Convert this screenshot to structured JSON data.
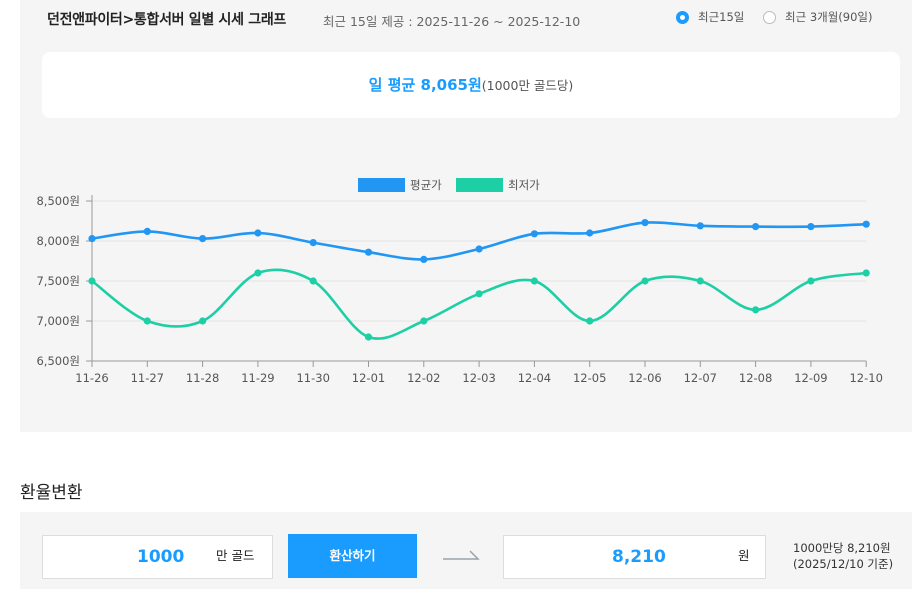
{
  "header": {
    "title": "던전앤파이터>통합서버 일별 시세 그래프",
    "subtitle": "최근 15일 제공 : 2025-11-26 ~ 2025-12-10"
  },
  "range_options": [
    {
      "label": "최근15일",
      "selected": true
    },
    {
      "label": "최근 3개월(90일)",
      "selected": false
    }
  ],
  "summary": {
    "label": "일 평균 8,065원",
    "note": "(1000만 골드당)"
  },
  "colors": {
    "accent": "#1a9cff",
    "avg_line": "#2196f3",
    "min_line": "#1ccfa5"
  },
  "chart_data": {
    "type": "line",
    "categories": [
      "11-26",
      "11-27",
      "11-28",
      "11-29",
      "11-30",
      "12-01",
      "12-02",
      "12-03",
      "12-04",
      "12-05",
      "12-06",
      "12-07",
      "12-08",
      "12-09",
      "12-10"
    ],
    "series": [
      {
        "name": "평균가",
        "values": [
          8030,
          8120,
          8030,
          8100,
          7980,
          7860,
          7770,
          7900,
          8090,
          8100,
          8230,
          8190,
          8180,
          8180,
          8210
        ]
      },
      {
        "name": "최저가",
        "values": [
          7500,
          7000,
          7000,
          7600,
          7500,
          6800,
          7000,
          7340,
          7500,
          7000,
          7500,
          7500,
          7140,
          7500,
          7600
        ]
      }
    ],
    "yticks": [
      "6,500원",
      "7,000원",
      "7,500원",
      "8,000원",
      "8,500원"
    ],
    "ylim": [
      6500,
      8500
    ],
    "grid": true,
    "legend": "top-center"
  },
  "converter": {
    "section_title": "환율변환",
    "input_value": "1000",
    "input_unit": "만 골드",
    "button_label": "환산하기",
    "result_value": "8,210",
    "result_unit": "원",
    "rate_line1": "1000만당 8,210원",
    "rate_line2": "(2025/12/10 기준)"
  }
}
